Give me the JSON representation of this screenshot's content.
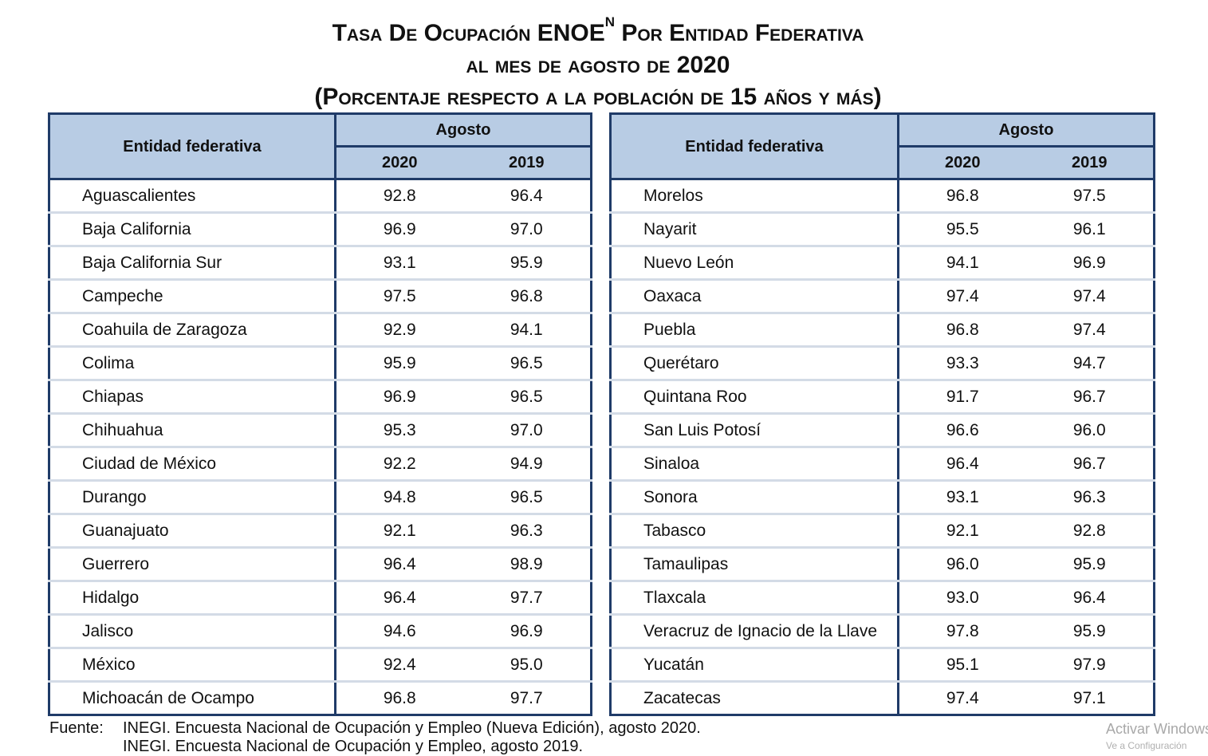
{
  "title": {
    "line1_a": "Tasa De Ocupación ENOE",
    "line1_sup": "N",
    "line1_b": " Por Entidad Federativa",
    "line2": "al mes de agosto de 2020",
    "line3": "(Porcentaje respecto a la población de 15 años y más)"
  },
  "table_header": {
    "entity": "Entidad federativa",
    "group": "Agosto",
    "col_2020": "2020",
    "col_2019": "2019"
  },
  "left_rows": [
    {
      "name": "Aguascalientes",
      "v2020": "92.8",
      "v2019": "96.4"
    },
    {
      "name": "Baja California",
      "v2020": "96.9",
      "v2019": "97.0"
    },
    {
      "name": "Baja California Sur",
      "v2020": "93.1",
      "v2019": "95.9"
    },
    {
      "name": "Campeche",
      "v2020": "97.5",
      "v2019": "96.8"
    },
    {
      "name": "Coahuila de Zaragoza",
      "v2020": "92.9",
      "v2019": "94.1"
    },
    {
      "name": "Colima",
      "v2020": "95.9",
      "v2019": "96.5"
    },
    {
      "name": "Chiapas",
      "v2020": "96.9",
      "v2019": "96.5"
    },
    {
      "name": "Chihuahua",
      "v2020": "95.3",
      "v2019": "97.0"
    },
    {
      "name": "Ciudad de México",
      "v2020": "92.2",
      "v2019": "94.9"
    },
    {
      "name": "Durango",
      "v2020": "94.8",
      "v2019": "96.5"
    },
    {
      "name": "Guanajuato",
      "v2020": "92.1",
      "v2019": "96.3"
    },
    {
      "name": "Guerrero",
      "v2020": "96.4",
      "v2019": "98.9"
    },
    {
      "name": "Hidalgo",
      "v2020": "96.4",
      "v2019": "97.7"
    },
    {
      "name": "Jalisco",
      "v2020": "94.6",
      "v2019": "96.9"
    },
    {
      "name": "México",
      "v2020": "92.4",
      "v2019": "95.0"
    },
    {
      "name": "Michoacán de Ocampo",
      "v2020": "96.8",
      "v2019": "97.7"
    }
  ],
  "right_rows": [
    {
      "name": "Morelos",
      "v2020": "96.8",
      "v2019": "97.5"
    },
    {
      "name": "Nayarit",
      "v2020": "95.5",
      "v2019": "96.1"
    },
    {
      "name": "Nuevo León",
      "v2020": "94.1",
      "v2019": "96.9"
    },
    {
      "name": "Oaxaca",
      "v2020": "97.4",
      "v2019": "97.4"
    },
    {
      "name": "Puebla",
      "v2020": "96.8",
      "v2019": "97.4"
    },
    {
      "name": "Querétaro",
      "v2020": "93.3",
      "v2019": "94.7"
    },
    {
      "name": "Quintana Roo",
      "v2020": "91.7",
      "v2019": "96.7"
    },
    {
      "name": "San Luis Potosí",
      "v2020": "96.6",
      "v2019": "96.0"
    },
    {
      "name": "Sinaloa",
      "v2020": "96.4",
      "v2019": "96.7"
    },
    {
      "name": "Sonora",
      "v2020": "93.1",
      "v2019": "96.3"
    },
    {
      "name": "Tabasco",
      "v2020": "92.1",
      "v2019": "92.8"
    },
    {
      "name": "Tamaulipas",
      "v2020": "96.0",
      "v2019": "95.9"
    },
    {
      "name": "Tlaxcala",
      "v2020": "93.0",
      "v2019": "96.4"
    },
    {
      "name": "Veracruz de Ignacio de la Llave",
      "v2020": "97.8",
      "v2019": "95.9"
    },
    {
      "name": "Yucatán",
      "v2020": "95.1",
      "v2019": "97.9"
    },
    {
      "name": "Zacatecas",
      "v2020": "97.4",
      "v2019": "97.1"
    }
  ],
  "source": {
    "label": "Fuente:",
    "line1": "INEGI. Encuesta Nacional de Ocupación y Empleo (Nueva Edición), agosto 2020.",
    "line2": "INEGI. Encuesta Nacional de Ocupación y Empleo, agosto 2019."
  },
  "watermark": {
    "line1": "Activar Windows",
    "line2": "Ve a Configuración"
  },
  "colors": {
    "header_bg": "#b8cce4",
    "border": "#1f3b68",
    "row_divider": "#d3dbe6"
  }
}
